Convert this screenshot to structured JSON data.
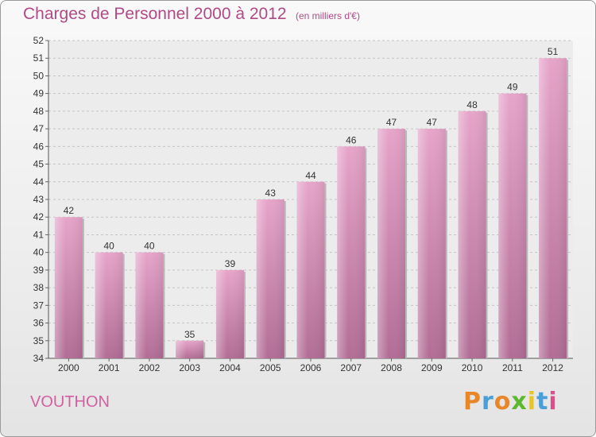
{
  "chart_data": {
    "type": "bar",
    "title": "Charges de Personnel 2000 à 2012",
    "subtitle": "(en milliers d'€)",
    "xlabel": "",
    "ylabel": "",
    "categories": [
      "2000",
      "2001",
      "2002",
      "2003",
      "2004",
      "2005",
      "2006",
      "2007",
      "2008",
      "2009",
      "2010",
      "2011",
      "2012"
    ],
    "values": [
      42,
      40,
      40,
      35,
      39,
      43,
      44,
      46,
      47,
      47,
      48,
      49,
      51
    ],
    "ylim": [
      34,
      52
    ],
    "yticks": [
      34,
      35,
      36,
      37,
      38,
      39,
      40,
      41,
      42,
      43,
      44,
      45,
      46,
      47,
      48,
      49,
      50,
      51,
      52
    ],
    "grid": true,
    "bar_color_top": "#e6a4c9",
    "bar_color_bottom": "#b26d96"
  },
  "place_name": "VOUTHON",
  "logo": {
    "letters": [
      "P",
      "r",
      "o",
      "x",
      "i",
      "t",
      "i"
    ],
    "colors": [
      "#e8862a",
      "#4a9fd8",
      "#e8862a",
      "#5cb82e",
      "#e8c32a",
      "#4a9fd8",
      "#e34b8f"
    ]
  }
}
